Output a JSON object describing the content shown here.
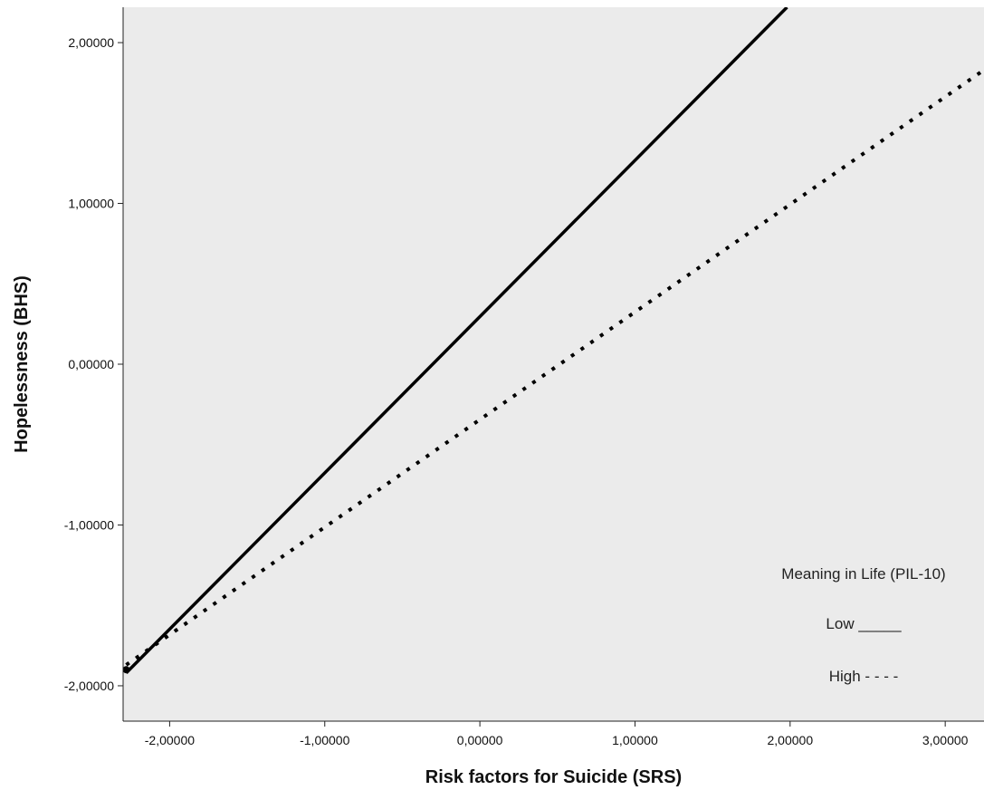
{
  "chart_data": {
    "type": "line",
    "title": "",
    "xlabel": "Risk factors for Suicide (SRS)",
    "ylabel": "Hopelessness (BHS)",
    "xlim": [
      -2.3,
      3.25
    ],
    "ylim": [
      -2.22,
      2.22
    ],
    "x_ticks": [
      -2,
      -1,
      0,
      1,
      2,
      3
    ],
    "x_tick_labels": [
      "-2,00000",
      "-1,00000",
      "0,00000",
      "1,00000",
      "2,00000",
      "3,00000"
    ],
    "y_ticks": [
      -2,
      -1,
      0,
      1,
      2
    ],
    "y_tick_labels": [
      "-2,00000",
      "-1,00000",
      "0,00000",
      "1,00000",
      "2,00000"
    ],
    "grid": false,
    "background": "#ebebeb",
    "series": [
      {
        "key": "low",
        "style": "solid",
        "color": "#000000",
        "x": [
          -2.28,
          1.98
        ],
        "y": [
          -1.92,
          2.22
        ]
      },
      {
        "key": "high",
        "style": "dotted",
        "color": "#000000",
        "x": [
          -2.28,
          3.25
        ],
        "y": [
          -1.87,
          1.83
        ]
      }
    ],
    "annotations": {
      "legend_title": "Meaning in Life (PIL-10)",
      "low_label": "Low _____",
      "high_label": "High - - - -",
      "placement": "bottom-right"
    }
  }
}
